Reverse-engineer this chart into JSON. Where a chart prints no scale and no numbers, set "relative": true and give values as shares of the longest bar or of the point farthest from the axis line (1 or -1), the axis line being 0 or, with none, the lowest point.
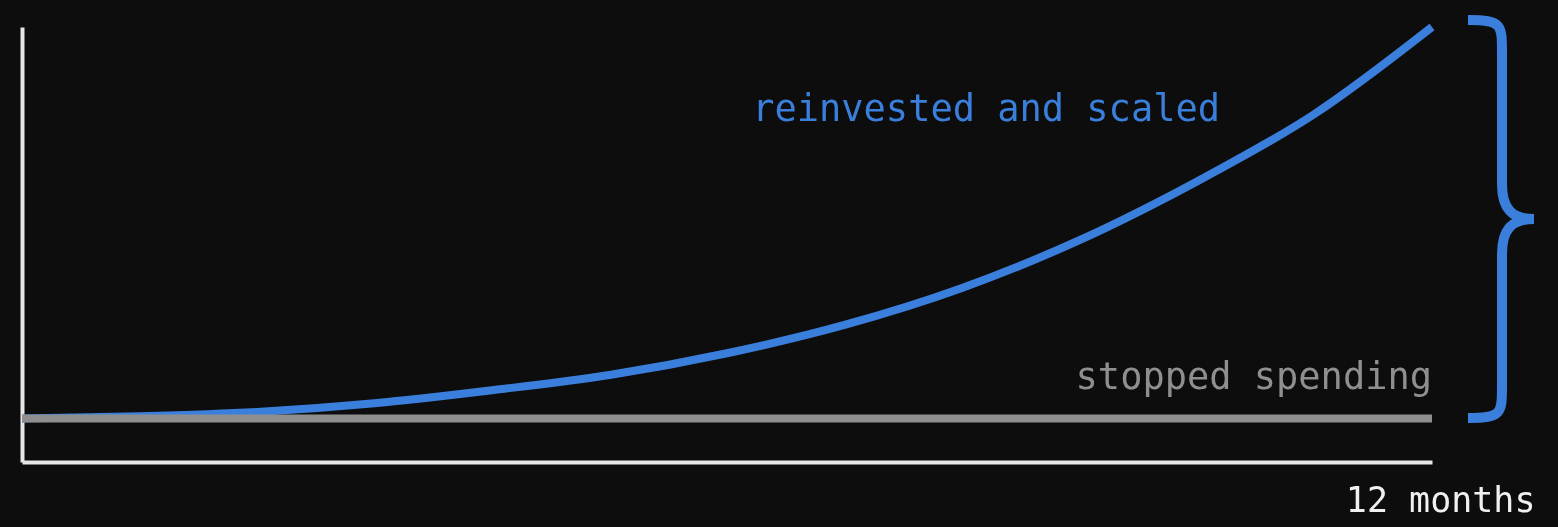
{
  "chart_data": {
    "type": "line",
    "relative": true,
    "xlabel": "12 months",
    "legend": false,
    "grid": false,
    "categories": [
      null,
      null,
      null,
      null,
      null,
      null,
      null,
      null,
      null,
      null,
      null,
      null,
      null
    ],
    "series": [
      {
        "name": "reinvested and scaled",
        "color": "#3b7fdc",
        "values": [
          0.1,
          0.105,
          0.115,
          0.135,
          0.165,
          0.2,
          0.25,
          0.315,
          0.4,
          0.51,
          0.645,
          0.8,
          1.0
        ]
      },
      {
        "name": "stopped spending",
        "color": "#8f8f8f",
        "values": [
          0.1,
          0.1,
          0.1,
          0.1,
          0.1,
          0.1,
          0.1,
          0.1,
          0.1,
          0.1,
          0.1,
          0.1,
          0.1
        ]
      }
    ]
  }
}
